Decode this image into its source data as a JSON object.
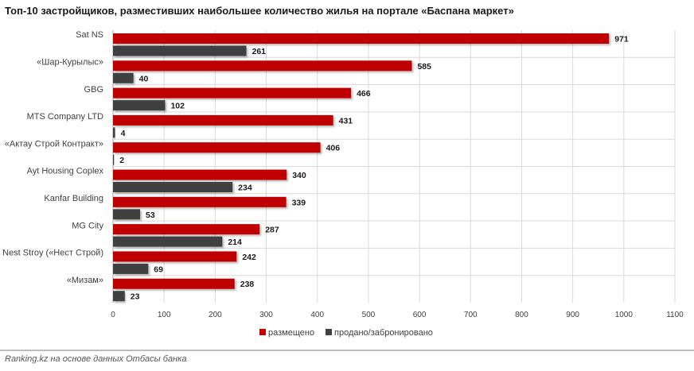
{
  "title": "Топ-10 застройщиков, разместивших наибольшее количество жилья на портале «Баспана маркет»",
  "source": "Ranking.kz на основе данных Отбасы банка",
  "colors": {
    "placed": "#c00000",
    "sold": "#404040",
    "grid": "#d9d9d9"
  },
  "chart_data": {
    "type": "bar",
    "orientation": "horizontal",
    "title": "Топ-10 застройщиков, разместивших наибольшее количество жилья на портале «Баспана маркет»",
    "categories": [
      "Sat NS",
      "«Шар-Курылыс»",
      "GBG",
      "MTS Company LTD",
      "«Актау Строй Контракт»",
      "Ayt Housing Coplex",
      "Kanfar Building",
      "MG City",
      "Nest Stroy («Нест Строй)",
      "«Мизам»"
    ],
    "series": [
      {
        "name": "размещено",
        "values": [
          971,
          585,
          466,
          431,
          406,
          340,
          339,
          287,
          242,
          238
        ]
      },
      {
        "name": "продано/забронировано",
        "values": [
          261,
          40,
          102,
          4,
          2,
          234,
          53,
          214,
          69,
          23
        ]
      }
    ],
    "xlim": [
      0,
      1100
    ],
    "xticks": [
      0,
      100,
      200,
      300,
      400,
      500,
      600,
      700,
      800,
      900,
      1000,
      1100
    ],
    "grid": true,
    "legend": "bottom-center"
  }
}
